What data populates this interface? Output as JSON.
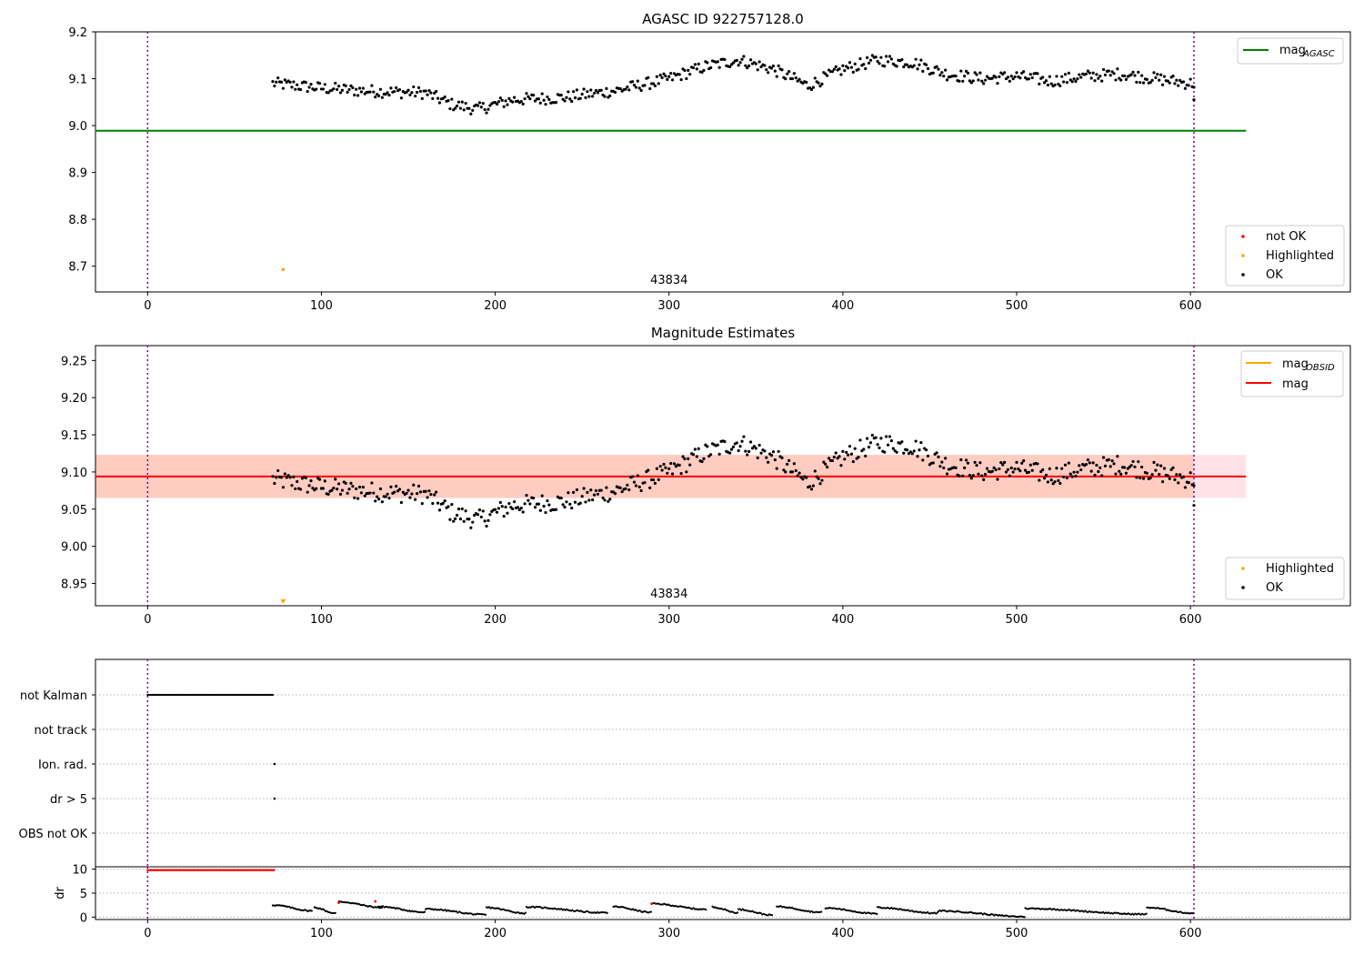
{
  "chart_data": [
    {
      "type": "scatter",
      "title": "AGASC ID 922757128.0",
      "xlim": [
        -30,
        692
      ],
      "ylim": [
        8.645,
        9.2
      ],
      "xticks": [
        "0",
        "100",
        "200",
        "300",
        "400",
        "500",
        "600"
      ],
      "yticks": [
        "8.7",
        "8.8",
        "8.9",
        "9.0",
        "9.1",
        "9.2"
      ],
      "vlines_x": [
        0,
        602
      ],
      "annotation": "43834",
      "annotation_x": 300,
      "lines": [
        {
          "name": "mag",
          "name_sub": "AGASC",
          "color": "#008000",
          "y": 8.989,
          "x": [
            -30,
            632
          ]
        }
      ],
      "band_legend": [
        "mag_AGASC"
      ],
      "legend": [
        {
          "label": "not OK",
          "color": "#ff0000"
        },
        {
          "label": "Highlighted",
          "color": "#ffa500"
        },
        {
          "label": "OK",
          "color": "#000000"
        }
      ],
      "highlighted": [
        {
          "x": 78,
          "y": 8.693
        }
      ],
      "series": [
        {
          "name": "OK",
          "color": "#000000",
          "trend": [
            [
              72,
              9.09
            ],
            [
              100,
              9.08
            ],
            [
              120,
              9.075
            ],
            [
              140,
              9.072
            ],
            [
              160,
              9.07
            ],
            [
              175,
              9.045
            ],
            [
              190,
              9.035
            ],
            [
              210,
              9.055
            ],
            [
              240,
              9.06
            ],
            [
              270,
              9.075
            ],
            [
              300,
              9.1
            ],
            [
              320,
              9.125
            ],
            [
              340,
              9.14
            ],
            [
              360,
              9.12
            ],
            [
              380,
              9.085
            ],
            [
              400,
              9.12
            ],
            [
              420,
              9.14
            ],
            [
              440,
              9.135
            ],
            [
              460,
              9.11
            ],
            [
              480,
              9.1
            ],
            [
              500,
              9.105
            ],
            [
              520,
              9.095
            ],
            [
              540,
              9.105
            ],
            [
              560,
              9.11
            ],
            [
              580,
              9.1
            ],
            [
              600,
              9.09
            ]
          ],
          "x_range": [
            72,
            602
          ]
        }
      ]
    },
    {
      "type": "scatter",
      "title": "Magnitude Estimates",
      "xlim": [
        -30,
        692
      ],
      "ylim": [
        8.92,
        9.27
      ],
      "xticks": [
        "0",
        "100",
        "200",
        "300",
        "400",
        "500",
        "600"
      ],
      "yticks": [
        "8.95",
        "9.00",
        "9.05",
        "9.10",
        "9.15",
        "9.20",
        "9.25"
      ],
      "vlines_x": [
        0,
        602
      ],
      "annotation": "43834",
      "annotation_x": 300,
      "lines": [
        {
          "name": "mag",
          "name_sub": "OBSID",
          "color": "#ffa500",
          "y": 9.094,
          "x": [
            -30,
            632
          ],
          "band": [
            9.065,
            9.123
          ]
        },
        {
          "name": "mag",
          "name_sub": "",
          "color": "#ff0000",
          "y": 9.094,
          "x": [
            -30,
            632
          ],
          "band": [
            9.065,
            9.123
          ]
        }
      ],
      "legend": [
        {
          "label": "Highlighted",
          "color": "#ffa500"
        },
        {
          "label": "OK",
          "color": "#000000"
        }
      ],
      "highlighted": [
        {
          "x": 78,
          "y": 8.925
        }
      ],
      "series": [
        {
          "name": "OK",
          "color": "#000000",
          "x_range": [
            72,
            602
          ]
        }
      ]
    },
    {
      "type": "scatter",
      "title": "",
      "xlim": [
        -30,
        692
      ],
      "categories": [
        "not Kalman",
        "not track",
        "Ion. rad.",
        "dr > 5",
        "OBS not OK"
      ],
      "flags": [
        {
          "category": "not Kalman",
          "x_range": [
            0,
            72
          ]
        },
        {
          "category": "Ion. rad.",
          "x": [
            73
          ]
        },
        {
          "category": "dr > 5",
          "x": [
            73
          ]
        }
      ],
      "vlines_x": [
        0,
        602
      ]
    },
    {
      "type": "scatter",
      "title": "",
      "ylabel": "dr",
      "xlim": [
        -30,
        692
      ],
      "ylim": [
        -0.5,
        10.5
      ],
      "xticks": [
        "0",
        "100",
        "200",
        "300",
        "400",
        "500",
        "600"
      ],
      "yticks": [
        "0",
        "5",
        "10"
      ],
      "vlines_x": [
        0,
        602
      ],
      "series": [
        {
          "name": "not OK",
          "color": "#ff0000",
          "x_range": [
            0,
            73
          ],
          "y": 9.8
        },
        {
          "name": "OK",
          "color": "#000000",
          "x_range": [
            72,
            602
          ]
        }
      ]
    }
  ]
}
